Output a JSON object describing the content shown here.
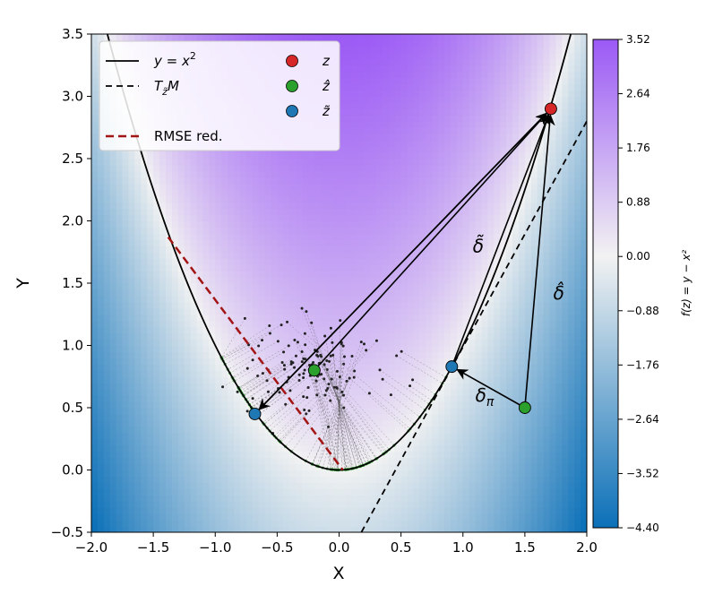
{
  "chart_data": {
    "type": "scatter",
    "xlabel": "X",
    "ylabel": "Y",
    "xlim": [
      -2.0,
      2.0
    ],
    "ylim": [
      -0.5,
      3.5
    ],
    "xticks": [
      "−2.0",
      "−1.5",
      "−1.0",
      "−0.5",
      "0.0",
      "0.5",
      "1.0",
      "1.5",
      "2.0"
    ],
    "yticks": [
      "−0.5",
      "0.0",
      "0.5",
      "1.0",
      "1.5",
      "2.0",
      "2.5",
      "3.0",
      "3.5"
    ],
    "colorbar": {
      "label": "f(z) = y − x²",
      "min": -4.4,
      "max": 3.52,
      "ticks": [
        "3.52",
        "2.64",
        "1.76",
        "0.88",
        "0.00",
        "−0.88",
        "−1.76",
        "−2.64",
        "−3.52",
        "−4.40"
      ],
      "colors": {
        "low": "#0b70b8",
        "mid": "#f2f2f2",
        "high": "#9b59f5"
      }
    },
    "curve": {
      "name": "y = x²",
      "x_range": [
        -2.0,
        2.0
      ]
    },
    "tangent": {
      "name": "T_z̃ M",
      "points": [
        [
          0.18,
          -0.5
        ],
        [
          2.0,
          2.8
        ]
      ]
    },
    "rmse_line": {
      "name": "RMSE red.",
      "points": [
        [
          -1.38,
          1.87
        ],
        [
          0.03,
          0.0
        ]
      ]
    },
    "points": {
      "z": {
        "name": "z",
        "x": 1.71,
        "y": 2.9,
        "color": "#d62728"
      },
      "z_hat": {
        "name": "ẑ",
        "x": 1.5,
        "y": 0.5,
        "color": "#2ca02c"
      },
      "z_tilde": {
        "name": "z̃",
        "x": 0.91,
        "y": 0.83,
        "color": "#1f77b4"
      },
      "z_hat_2": {
        "x": -0.2,
        "y": 0.8,
        "color": "#2ca02c"
      },
      "z_tilde_2": {
        "x": -0.68,
        "y": 0.45,
        "color": "#1f77b4"
      }
    },
    "arrows": [
      {
        "from": [
          -0.2,
          0.8
        ],
        "to": [
          1.71,
          2.9
        ]
      },
      {
        "from": [
          1.71,
          2.9
        ],
        "to": [
          -0.68,
          0.45
        ]
      },
      {
        "from": [
          -0.68,
          0.45
        ],
        "to": [
          1.71,
          2.9
        ]
      },
      {
        "from": [
          0.91,
          0.83
        ],
        "to": [
          1.71,
          2.9
        ]
      },
      {
        "from": [
          1.5,
          0.5
        ],
        "to": [
          1.71,
          2.9
        ]
      },
      {
        "from": [
          1.5,
          0.5
        ],
        "to": [
          0.91,
          0.83
        ]
      }
    ],
    "annotations": {
      "delta_tilde": {
        "text": "δ̃",
        "x": 1.08,
        "y": 1.75
      },
      "delta_hat": {
        "text": "δ̂",
        "x": 1.73,
        "y": 1.37
      },
      "delta_pi": {
        "text": "δπ",
        "x": 1.1,
        "y": 0.55
      }
    },
    "cloud": {
      "count": 130,
      "center": [
        -0.2,
        0.85
      ],
      "spread": [
        0.28,
        0.2
      ],
      "projection_x_range": [
        -0.95,
        0.9
      ]
    },
    "legend": {
      "position": "top-left",
      "items": [
        {
          "label": "y = x²",
          "style": "solid"
        },
        {
          "label": "T_z̃ M",
          "style": "dashed"
        },
        {
          "label": "z",
          "style": "marker-red"
        },
        {
          "label": "ẑ",
          "style": "marker-green"
        },
        {
          "label": "z̃",
          "style": "marker-blue"
        },
        {
          "label": "RMSE red.",
          "style": "dashed-red"
        }
      ]
    }
  }
}
